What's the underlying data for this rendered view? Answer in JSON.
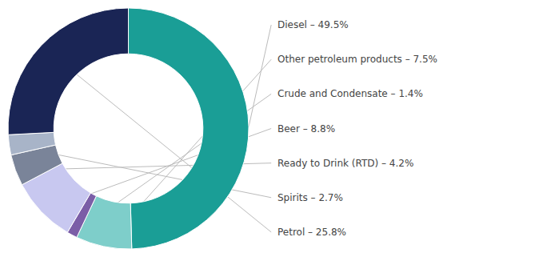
{
  "chart_data": {
    "type": "donut",
    "categories": [
      "Diesel – 49.5%",
      "Other petroleum products – 7.5%",
      "Crude and Condensate – 1.4%",
      "Beer – 8.8%",
      "Ready to Drink (RTD) – 4.2%",
      "Spirits – 2.7%",
      "Petrol – 25.8%"
    ],
    "values": [
      49.5,
      7.5,
      1.4,
      8.8,
      4.2,
      2.7,
      25.8
    ],
    "colors": [
      "#1a9e96",
      "#7ececa",
      "#7b5ea7",
      "#c8c8f0",
      "#7a8499",
      "#a8b4c8",
      "#1a2555"
    ]
  }
}
